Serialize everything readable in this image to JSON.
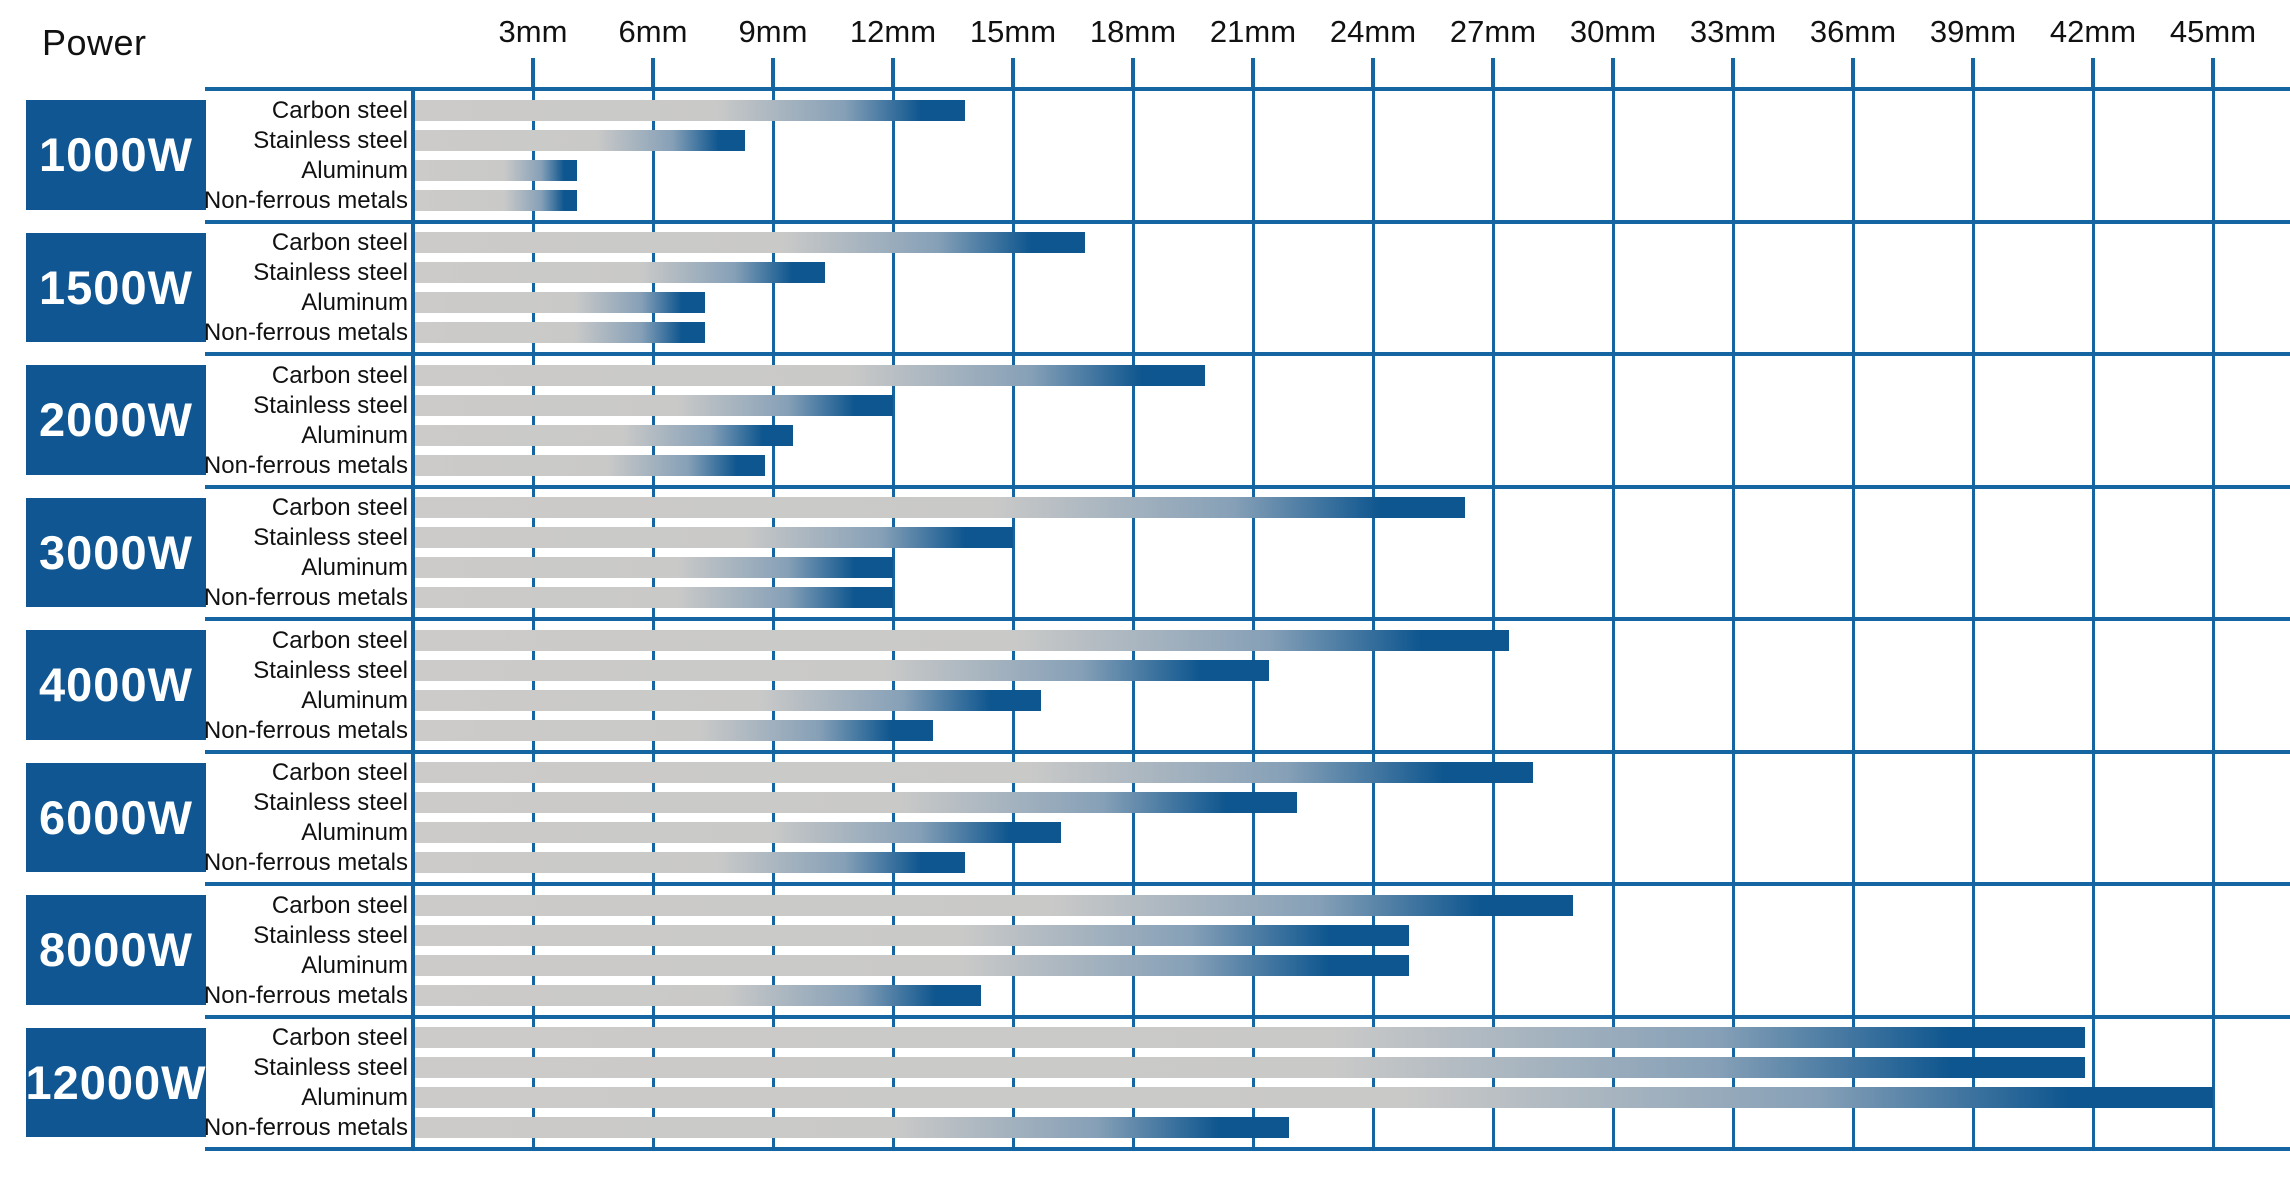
{
  "title": "Power",
  "colors": {
    "grid_line": "#1565a3",
    "power_block": "#0f5692",
    "bar_blue": "#0e568f",
    "bar_gray": "#cccbc9"
  },
  "chart_data": {
    "type": "bar",
    "orientation": "horizontal",
    "title": "Power",
    "x_unit": "mm",
    "xlim": [
      0,
      46.9
    ],
    "grid": "on",
    "x_tick_values": [
      3,
      6,
      9,
      12,
      15,
      18,
      21,
      24,
      27,
      30,
      33,
      36,
      39,
      42,
      45
    ],
    "x_tick_labels": [
      "3mm",
      "6mm",
      "9mm",
      "12mm",
      "15mm",
      "18mm",
      "21mm",
      "24mm",
      "27mm",
      "30mm",
      "33mm",
      "36mm",
      "39mm",
      "42mm",
      "45mm"
    ],
    "materials": [
      "Carbon steel",
      "Stainless steel",
      "Aluminum",
      "Non-ferrous metals"
    ],
    "groups": [
      {
        "power": "1000W",
        "values": [
          13.8,
          8.3,
          4.1,
          4.1
        ]
      },
      {
        "power": "1500W",
        "values": [
          16.8,
          10.3,
          7.3,
          7.3
        ]
      },
      {
        "power": "2000W",
        "values": [
          19.8,
          12.0,
          9.5,
          8.8
        ]
      },
      {
        "power": "3000W",
        "values": [
          26.3,
          15.0,
          12.0,
          12.0
        ]
      },
      {
        "power": "4000W",
        "values": [
          27.4,
          21.4,
          15.7,
          13.0
        ]
      },
      {
        "power": "6000W",
        "values": [
          28.0,
          22.1,
          16.2,
          13.8
        ]
      },
      {
        "power": "8000W",
        "values": [
          29.0,
          24.9,
          24.9,
          14.2
        ]
      },
      {
        "power": "12000W",
        "values": [
          41.8,
          41.8,
          45.0,
          21.9
        ]
      }
    ]
  }
}
